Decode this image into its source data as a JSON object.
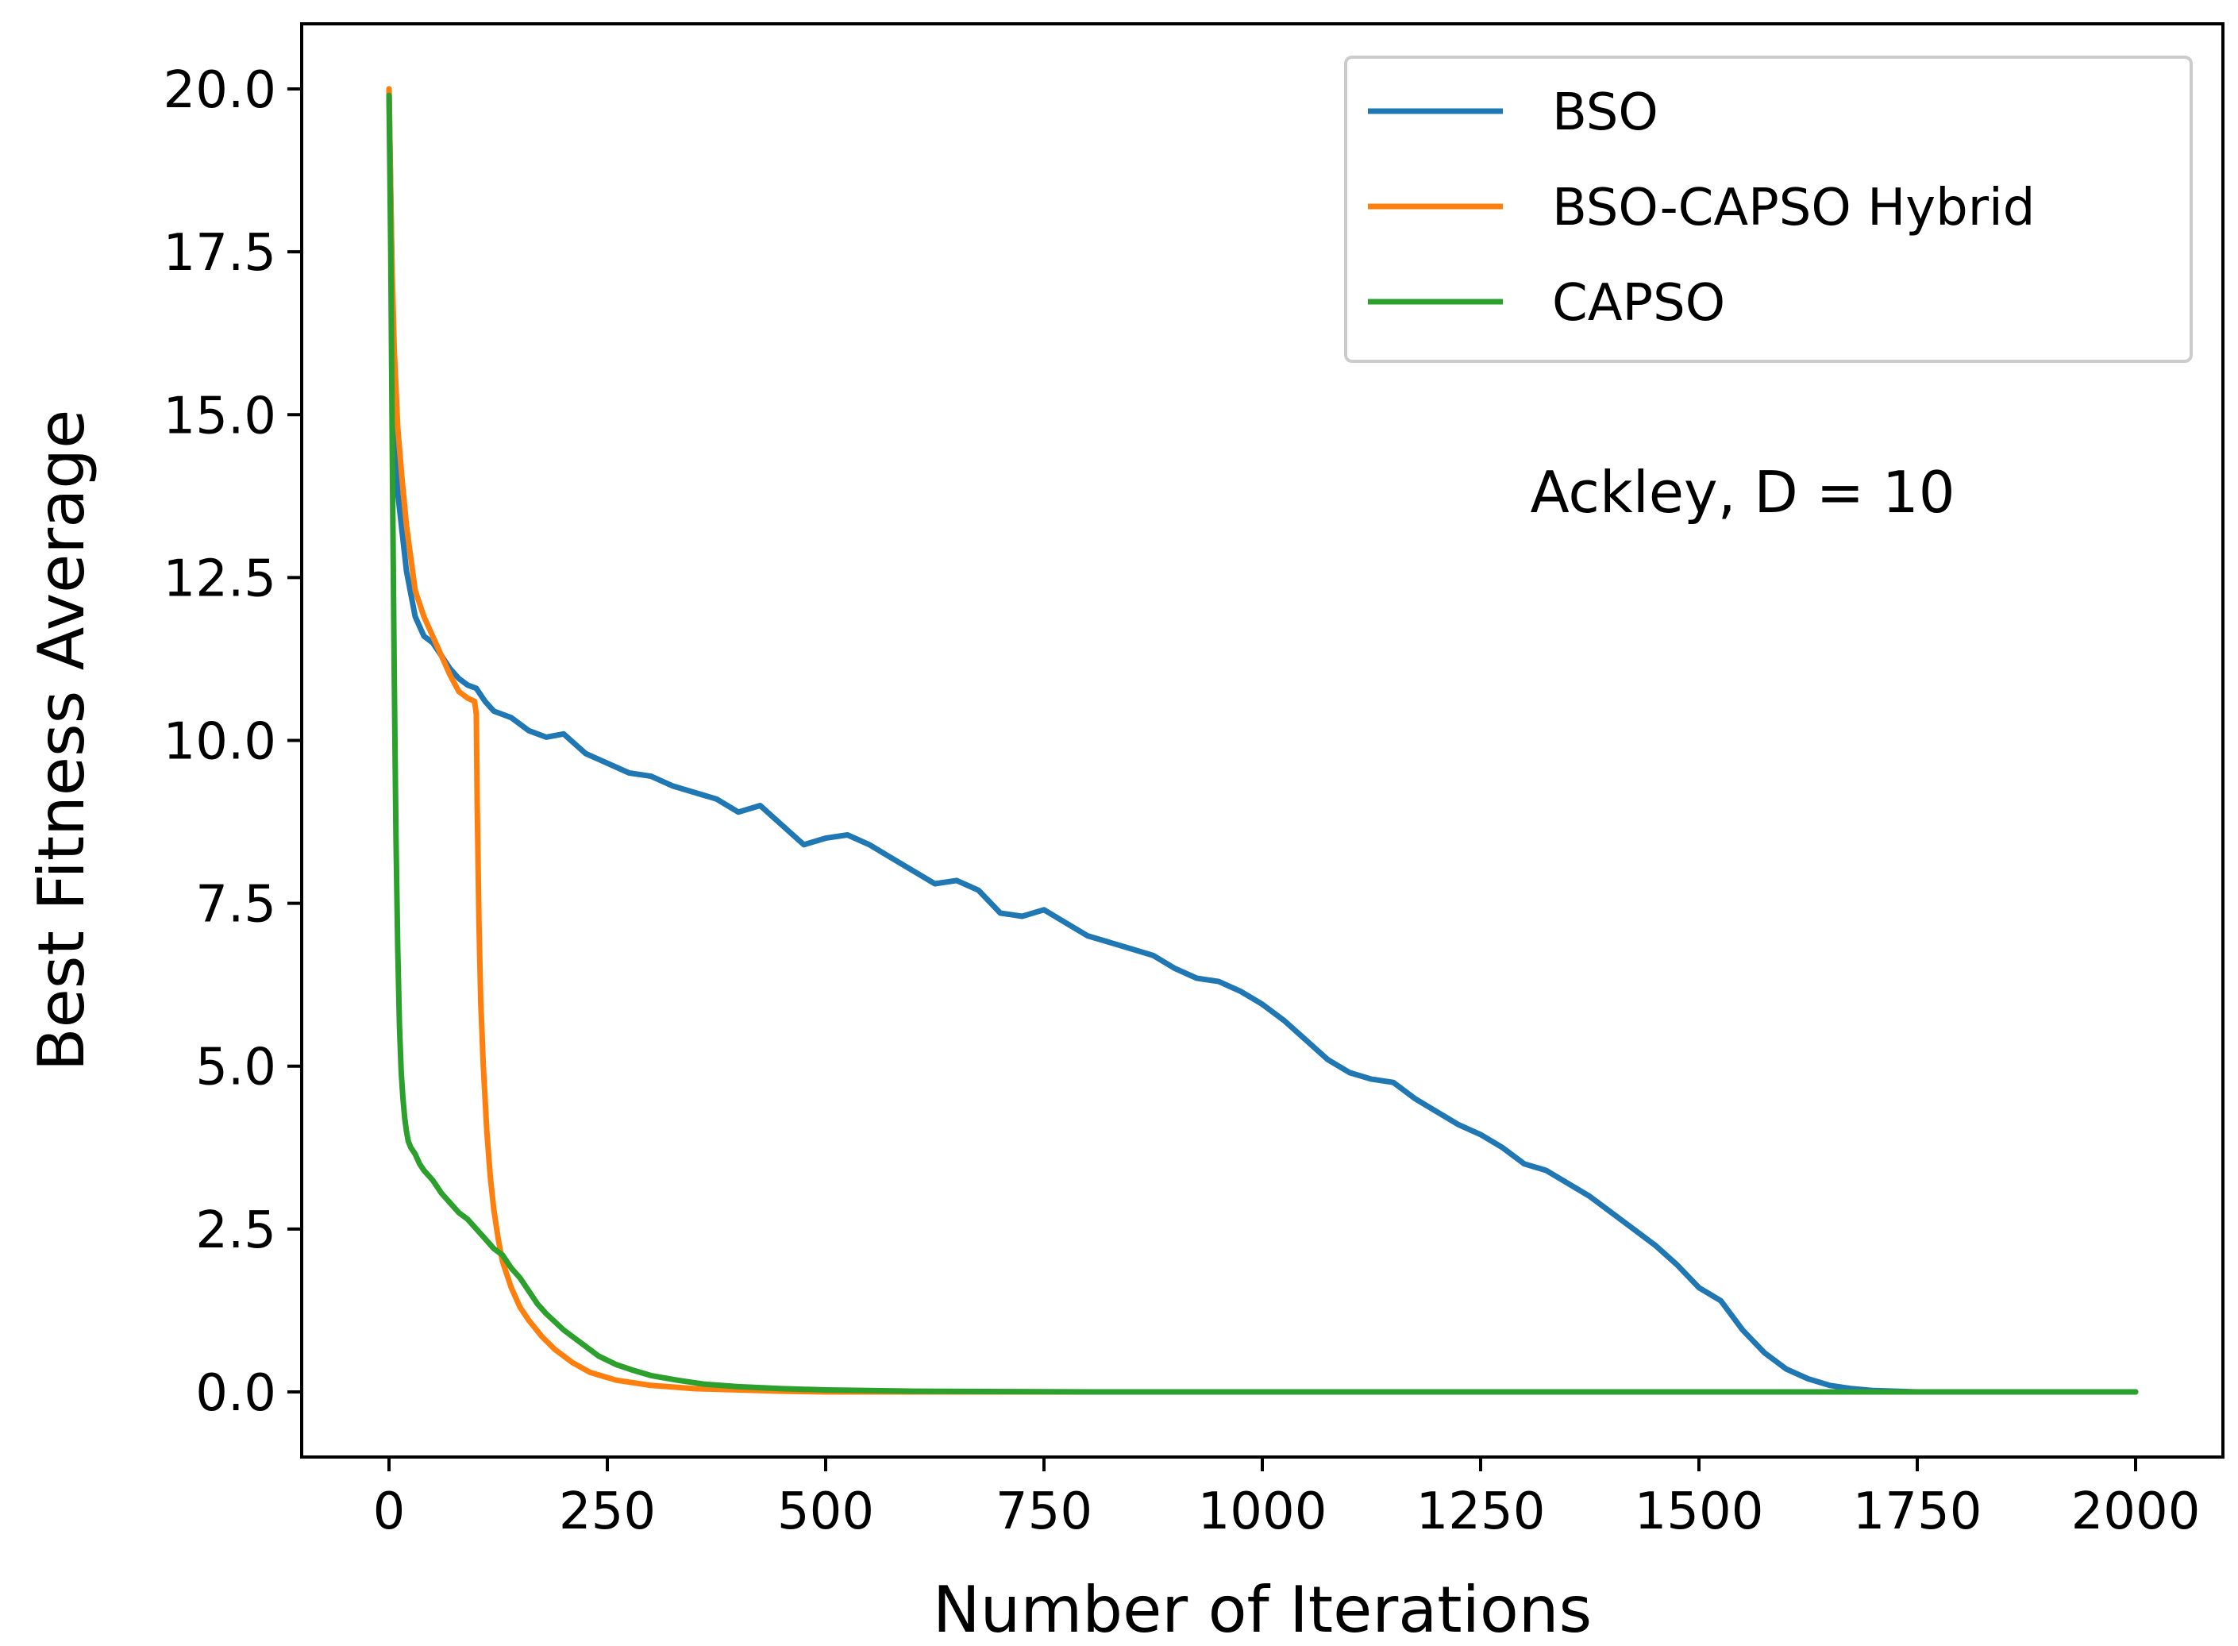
{
  "chart_data": {
    "type": "line",
    "title": "",
    "xlabel": "Number of Iterations",
    "ylabel": "Best Fitness Average",
    "xlim": [
      -100,
      2100
    ],
    "ylim": [
      -1.0,
      21.0
    ],
    "xticks": [
      0,
      250,
      500,
      750,
      1000,
      1250,
      1500,
      1750,
      2000
    ],
    "xtick_labels": [
      "0",
      "250",
      "500",
      "750",
      "1000",
      "1250",
      "1500",
      "1750",
      "2000"
    ],
    "yticks": [
      0.0,
      2.5,
      5.0,
      7.5,
      10.0,
      12.5,
      15.0,
      17.5,
      20.0
    ],
    "ytick_labels": [
      "0.0",
      "2.5",
      "5.0",
      "7.5",
      "10.0",
      "12.5",
      "15.0",
      "17.5",
      "20.0"
    ],
    "grid": false,
    "legend_position": "top-right",
    "annotation": "Ackley, D = 10",
    "series": [
      {
        "name": "BSO",
        "color": "#1f77b4",
        "x": [
          0,
          5,
          10,
          20,
          30,
          40,
          50,
          60,
          70,
          80,
          90,
          100,
          110,
          120,
          140,
          160,
          180,
          200,
          225,
          250,
          275,
          300,
          325,
          350,
          375,
          400,
          425,
          450,
          475,
          500,
          525,
          550,
          575,
          600,
          625,
          650,
          675,
          700,
          725,
          750,
          775,
          800,
          825,
          850,
          875,
          900,
          925,
          950,
          975,
          1000,
          1025,
          1050,
          1075,
          1100,
          1125,
          1150,
          1175,
          1200,
          1225,
          1250,
          1275,
          1300,
          1325,
          1350,
          1375,
          1400,
          1425,
          1450,
          1475,
          1500,
          1525,
          1550,
          1575,
          1600,
          1625,
          1650,
          1675,
          1700,
          1725,
          1750,
          1775,
          1800,
          1850,
          1900,
          1950,
          2000
        ],
        "values": [
          20.0,
          16.0,
          13.8,
          12.6,
          11.9,
          11.6,
          11.5,
          11.3,
          11.1,
          10.95,
          10.85,
          10.8,
          10.6,
          10.45,
          10.35,
          10.15,
          10.05,
          10.1,
          9.8,
          9.65,
          9.5,
          9.45,
          9.3,
          9.2,
          9.1,
          8.9,
          9.0,
          8.7,
          8.4,
          8.5,
          8.55,
          8.4,
          8.2,
          8.0,
          7.8,
          7.85,
          7.7,
          7.35,
          7.3,
          7.4,
          7.2,
          7.0,
          6.9,
          6.8,
          6.7,
          6.5,
          6.35,
          6.3,
          6.15,
          5.95,
          5.7,
          5.4,
          5.1,
          4.9,
          4.8,
          4.75,
          4.5,
          4.3,
          4.1,
          3.95,
          3.75,
          3.5,
          3.4,
          3.2,
          3.0,
          2.75,
          2.5,
          2.25,
          1.95,
          1.6,
          1.4,
          0.95,
          0.6,
          0.35,
          0.2,
          0.1,
          0.05,
          0.02,
          0.01,
          0.0,
          0.0,
          0.0,
          0.0,
          0.0,
          0.0,
          0.0
        ]
      },
      {
        "name": "BSO-CAPSO Hybrid",
        "color": "#ff7f0e",
        "x": [
          0,
          3,
          6,
          10,
          15,
          20,
          25,
          30,
          40,
          50,
          60,
          70,
          80,
          90,
          98,
          100,
          101,
          103,
          105,
          108,
          112,
          116,
          120,
          125,
          130,
          140,
          150,
          160,
          175,
          190,
          210,
          230,
          260,
          300,
          350,
          400,
          450,
          500,
          600,
          800,
          1000,
          1500,
          2000
        ],
        "values": [
          20.0,
          17.5,
          16.0,
          14.8,
          14.0,
          13.3,
          12.8,
          12.3,
          11.9,
          11.6,
          11.3,
          11.0,
          10.75,
          10.65,
          10.6,
          10.4,
          9.0,
          7.2,
          6.0,
          5.0,
          4.0,
          3.3,
          2.8,
          2.35,
          2.0,
          1.6,
          1.3,
          1.1,
          0.85,
          0.65,
          0.45,
          0.3,
          0.18,
          0.1,
          0.05,
          0.03,
          0.01,
          0.0,
          0.0,
          0.0,
          0.0,
          0.0,
          0.0
        ]
      },
      {
        "name": "CAPSO",
        "color": "#2ca02c",
        "x": [
          0,
          2,
          4,
          6,
          8,
          10,
          12,
          14,
          16,
          18,
          20,
          22,
          25,
          30,
          35,
          40,
          50,
          60,
          70,
          80,
          90,
          100,
          110,
          120,
          130,
          140,
          150,
          160,
          170,
          180,
          200,
          220,
          240,
          260,
          280,
          300,
          330,
          360,
          400,
          450,
          500,
          550,
          600,
          800,
          1000,
          1500,
          2000
        ],
        "values": [
          19.9,
          17.5,
          14.0,
          11.0,
          8.5,
          6.8,
          5.6,
          4.9,
          4.5,
          4.2,
          4.0,
          3.85,
          3.75,
          3.65,
          3.5,
          3.4,
          3.25,
          3.05,
          2.9,
          2.75,
          2.65,
          2.5,
          2.35,
          2.2,
          2.1,
          1.9,
          1.75,
          1.55,
          1.35,
          1.2,
          0.95,
          0.75,
          0.55,
          0.42,
          0.33,
          0.25,
          0.18,
          0.12,
          0.08,
          0.05,
          0.03,
          0.02,
          0.01,
          0.0,
          0.0,
          0.0,
          0.0
        ]
      }
    ]
  }
}
